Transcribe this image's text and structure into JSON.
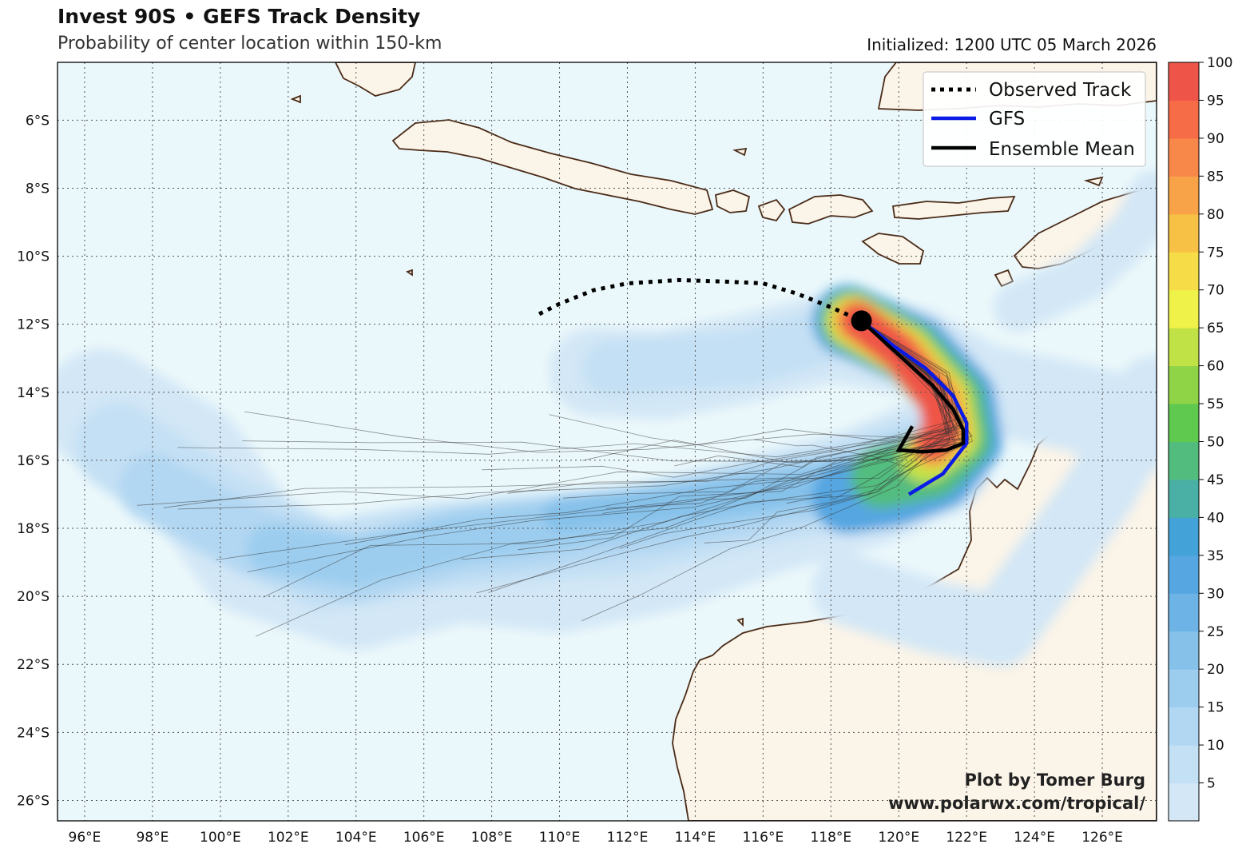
{
  "title": "Invest 90S • GEFS Track Density",
  "subtitle": "Probability of center location within 150-km",
  "initialized": "Initialized: 1200 UTC 05 March 2026",
  "credit": {
    "line1": "Plot by Tomer Burg",
    "line2": "www.polarwx.com/tropical/"
  },
  "legend": {
    "observed": "Observed Track",
    "gfs": "GFS",
    "mean": "Ensemble Mean"
  },
  "colors": {
    "ocean": "#ebf8fb",
    "land": "#fbf4e8",
    "coast": "#4a2b18",
    "gfs": "#0a1be6",
    "mean": "#000000"
  },
  "chart_data": {
    "type": "map",
    "x_ticks": [
      "96°E",
      "98°E",
      "100°E",
      "102°E",
      "104°E",
      "106°E",
      "108°E",
      "110°E",
      "112°E",
      "114°E",
      "116°E",
      "118°E",
      "120°E",
      "122°E",
      "124°E",
      "126°E"
    ],
    "y_ticks": [
      "6°S",
      "8°S",
      "10°S",
      "12°S",
      "14°S",
      "16°S",
      "18°S",
      "20°S",
      "22°S",
      "24°S",
      "26°S"
    ],
    "lon_range": [
      95.2,
      127.6
    ],
    "lat_range": [
      -26.6,
      -4.3
    ],
    "colorbar": {
      "levels": [
        0,
        5,
        10,
        15,
        20,
        25,
        30,
        35,
        40,
        45,
        50,
        55,
        60,
        65,
        70,
        75,
        80,
        85,
        90,
        95,
        100
      ],
      "labels": [
        "5",
        "10",
        "15",
        "20",
        "25",
        "30",
        "35",
        "40",
        "45",
        "50",
        "55",
        "60",
        "65",
        "70",
        "75",
        "80",
        "85",
        "90",
        "95",
        "100"
      ],
      "colors": [
        "#d3e7f6",
        "#c4e0f4",
        "#b2d7f2",
        "#9ccdef",
        "#86c1ea",
        "#6db3e5",
        "#55a6e1",
        "#43a2d8",
        "#4ab0a6",
        "#52bc7f",
        "#5ec84f",
        "#8ed446",
        "#c1e247",
        "#eff249",
        "#f6dd47",
        "#f7c146",
        "#f8a347",
        "#f8874a",
        "#f56c47",
        "#ee5447"
      ]
    },
    "observed_track": [
      [
        109.4,
        -11.7
      ],
      [
        110.0,
        -11.4
      ],
      [
        111.0,
        -11.0
      ],
      [
        112.0,
        -10.8
      ],
      [
        113.5,
        -10.7
      ],
      [
        115.0,
        -10.75
      ],
      [
        116.0,
        -10.8
      ],
      [
        117.0,
        -11.1
      ],
      [
        118.0,
        -11.5
      ],
      [
        118.9,
        -11.9
      ]
    ],
    "current_position": [
      118.9,
      -11.9
    ],
    "gfs_track": [
      [
        118.9,
        -11.9
      ],
      [
        119.8,
        -12.6
      ],
      [
        120.8,
        -13.3
      ],
      [
        121.6,
        -14.1
      ],
      [
        122.0,
        -14.9
      ],
      [
        122.0,
        -15.5
      ],
      [
        121.3,
        -16.4
      ],
      [
        120.8,
        -16.7
      ],
      [
        120.3,
        -17.0
      ]
    ],
    "ensemble_mean": [
      [
        118.9,
        -11.9
      ],
      [
        120.0,
        -12.9
      ],
      [
        121.0,
        -13.8
      ],
      [
        121.6,
        -14.5
      ],
      [
        121.9,
        -15.1
      ],
      [
        121.9,
        -15.5
      ],
      [
        121.4,
        -15.7
      ],
      [
        120.7,
        -15.75
      ],
      [
        120.0,
        -15.7
      ],
      [
        120.4,
        -15.0
      ]
    ]
  }
}
